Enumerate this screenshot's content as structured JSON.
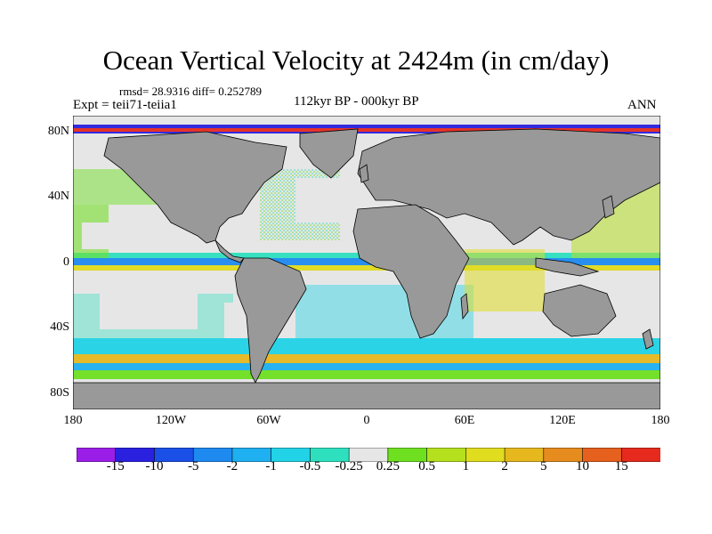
{
  "title": "Ocean Vertical Velocity at 2424m (in cm/day)",
  "stats": "rmsd= 28.9316 diff= 0.252789",
  "experiment": "Expt = teii71-teiia1",
  "period": "112kyr BP - 000kyr BP",
  "season": "ANN",
  "lat_labels": [
    "80N",
    "40N",
    "0",
    "40S",
    "80S"
  ],
  "lon_labels": [
    "180",
    "120W",
    "60W",
    "0",
    "60E",
    "120E",
    "180"
  ],
  "colorbar": {
    "labels": [
      "-15",
      "-10",
      "-5",
      "-2",
      "-1",
      "-0.5",
      "-0.25",
      "0.25",
      "0.5",
      "1",
      "2",
      "5",
      "10",
      "15"
    ],
    "colors": [
      "#9b1ee8",
      "#2a20e0",
      "#1a50e8",
      "#1e8af0",
      "#1eb0f0",
      "#22d2e6",
      "#2ee0be",
      "#e6e6e6",
      "#6ee020",
      "#b4e01e",
      "#e0dc1e",
      "#e6b81e",
      "#e68c1e",
      "#e6601e",
      "#e62a1e"
    ]
  },
  "colors": {
    "land": "#999999",
    "background_ocean": "#e6e6e6",
    "coastline": "#000000"
  }
}
